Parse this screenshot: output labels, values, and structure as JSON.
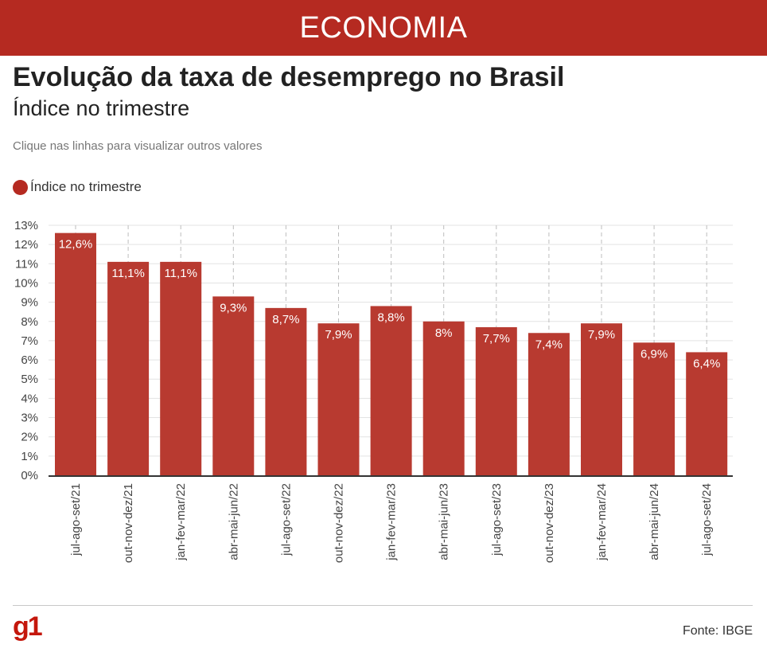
{
  "header": {
    "section": "ECONOMIA"
  },
  "hint": "Clique nas linhas para visualizar outros valores",
  "footer": {
    "logo": "g1",
    "source": "Fonte: IBGE"
  },
  "colors": {
    "brand": "#b52a21",
    "bar": "#b83a30",
    "logo": "#c4170c"
  },
  "chart_data": {
    "type": "bar",
    "title": "Evolução da taxa de desemprego no Brasil",
    "subtitle": "Índice no trimestre",
    "legend": [
      "Índice no trimestre"
    ],
    "categories": [
      "jul-ago-set/21",
      "out-nov-dez/21",
      "jan-fev-mar/22",
      "abr-mai-jun/22",
      "jul-ago-set/22",
      "out-nov-dez/22",
      "jan-fev-mar/23",
      "abr-mai-jun/23",
      "jul-ago-set/23",
      "out-nov-dez/23",
      "jan-fev-mar/24",
      "abr-mai-jun/24",
      "jul-ago-set/24"
    ],
    "values": [
      12.6,
      11.1,
      11.1,
      9.3,
      8.7,
      7.9,
      8.8,
      8,
      7.7,
      7.4,
      7.9,
      6.9,
      6.4
    ],
    "labels": [
      "12,6%",
      "11,1%",
      "11,1%",
      "9,3%",
      "8,7%",
      "7,9%",
      "8,8%",
      "8%",
      "7,7%",
      "7,4%",
      "7,9%",
      "6,9%",
      "6,4%"
    ],
    "yticks": [
      "0%",
      "1%",
      "2%",
      "3%",
      "4%",
      "5%",
      "6%",
      "7%",
      "8%",
      "9%",
      "10%",
      "11%",
      "12%",
      "13%"
    ],
    "ylim": [
      0,
      13
    ],
    "xlabel": "",
    "ylabel": "",
    "grid": true
  }
}
